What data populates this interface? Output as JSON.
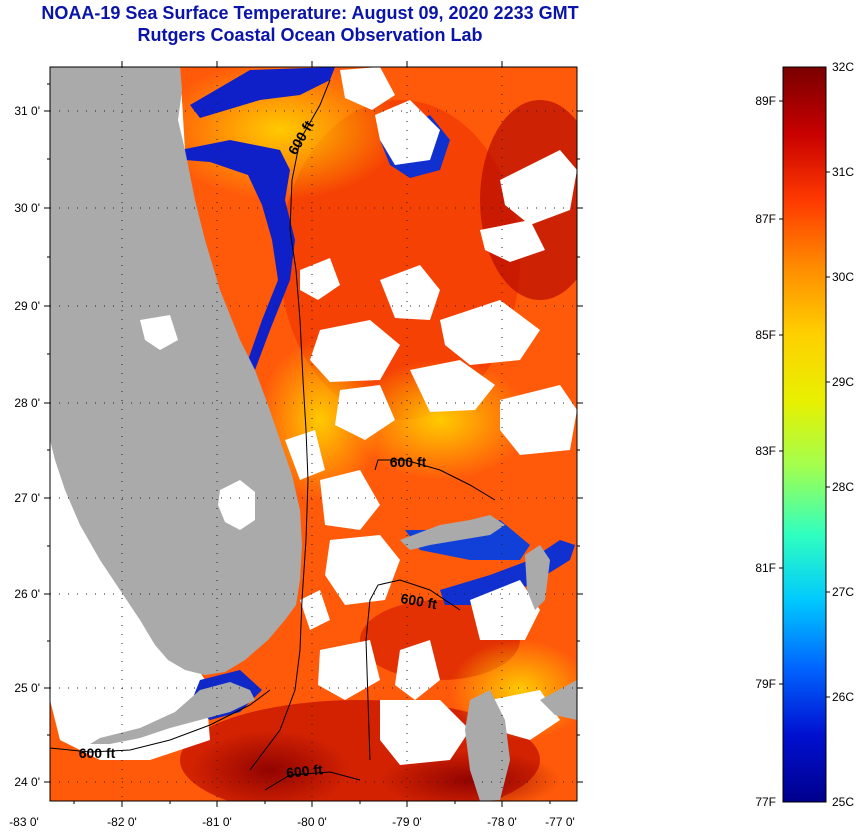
{
  "header": {
    "title_line1": "NOAA-19 Sea Surface Temperature:  August 09, 2020 2233 GMT",
    "title_line2": "Rutgers Coastal Ocean Observation Lab"
  },
  "map": {
    "lat_labels": [
      "31 0'",
      "30 0'",
      "29 0'",
      "28 0'",
      "27 0'",
      "26 0'",
      "25 0'",
      "24 0'"
    ],
    "lon_labels": [
      "-83 0'",
      "-82 0'",
      "-81 0'",
      "-80 0'",
      "-79 0'",
      "-78 0'",
      "-77 0'"
    ],
    "isobath_labels": [
      "600 ft",
      "600 ft",
      "600 ft",
      "600 ft",
      "600 ft"
    ],
    "colors": {
      "land": "#aaaaaa",
      "cloud": "#ffffff",
      "isobath": "#000000"
    }
  },
  "colorbar": {
    "celsius_labels": [
      "32C",
      "31C",
      "30C",
      "29C",
      "28C",
      "27C",
      "26C",
      "25C"
    ],
    "fahrenheit_labels": [
      "89F",
      "87F",
      "85F",
      "83F",
      "81F",
      "79F",
      "77F"
    ],
    "gradient": [
      "#7a0000",
      "#c80000",
      "#ff3a00",
      "#ff8c00",
      "#ffd000",
      "#e8f000",
      "#a0ff50",
      "#30ffc0",
      "#00c8ff",
      "#0064ff",
      "#0010d0",
      "#00008c"
    ]
  }
}
